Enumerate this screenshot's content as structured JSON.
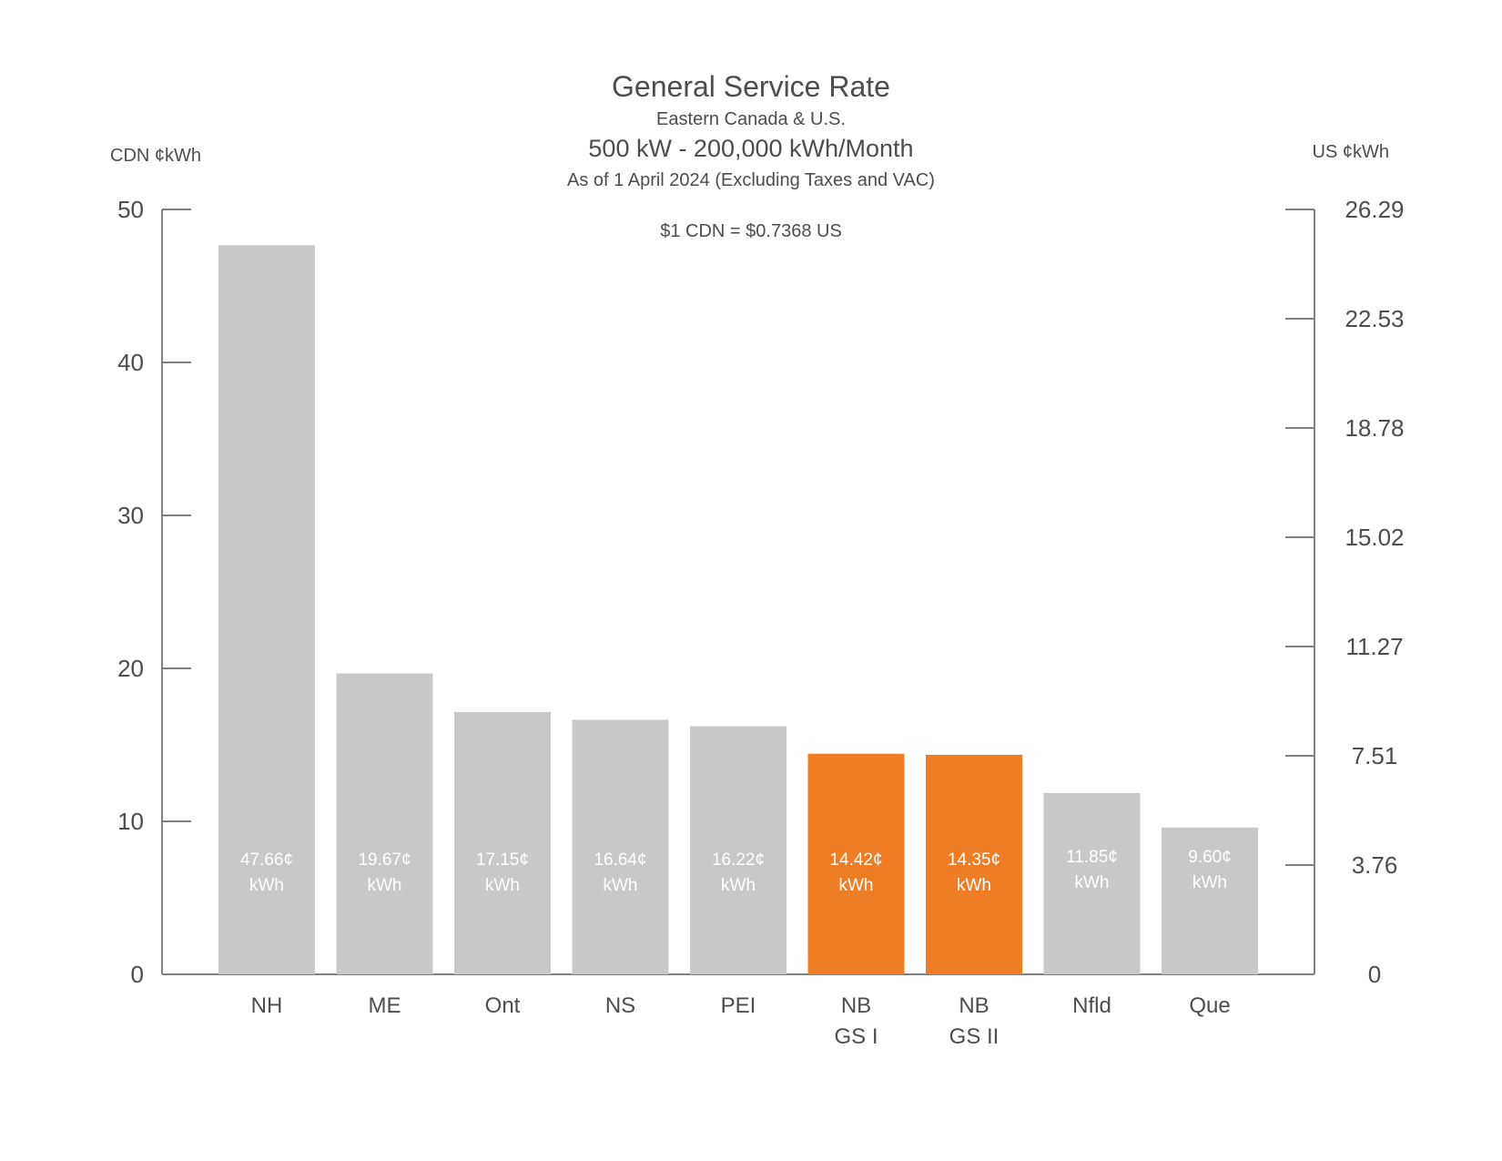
{
  "title": "General Service Rate",
  "subtitle": "Eastern Canada & U.S.",
  "subtitle2": "500 kW - 200,000 kWh/Month",
  "as_of": "As of 1 April 2024 (Excluding Taxes and VAC)",
  "exchange_note": "$1 CDN = $0.7368 US",
  "colors": {
    "default_bar": "#c7c8ca",
    "highlight_bar": "#ef7d26",
    "axis": "#808080",
    "text": "#4d4d4d"
  },
  "chart_data": {
    "type": "bar",
    "ylabel_left": "CDN ¢kWh",
    "ylabel_right": "US ¢kWh",
    "ylim": [
      0,
      50
    ],
    "left_ticks": [
      "0",
      "10",
      "20",
      "30",
      "40",
      "50"
    ],
    "right_ticks": [
      "0",
      "3.76",
      "7.51",
      "11.27",
      "15.02",
      "18.78",
      "22.53",
      "26.29"
    ],
    "categories": [
      [
        "NH"
      ],
      [
        "ME"
      ],
      [
        "Ont"
      ],
      [
        "NS"
      ],
      [
        "PEI"
      ],
      [
        "NB",
        "GS I"
      ],
      [
        "NB",
        "GS II"
      ],
      [
        "Nfld"
      ],
      [
        "Que"
      ]
    ],
    "values": [
      47.66,
      19.67,
      17.15,
      16.64,
      16.22,
      14.42,
      14.35,
      11.85,
      9.6
    ],
    "value_labels": [
      [
        "47.66¢",
        "kWh"
      ],
      [
        "19.67¢",
        "kWh"
      ],
      [
        "17.15¢",
        "kWh"
      ],
      [
        "16.64¢",
        "kWh"
      ],
      [
        "16.22¢",
        "kWh"
      ],
      [
        "14.42¢",
        "kWh"
      ],
      [
        "14.35¢",
        "kWh"
      ],
      [
        "11.85¢",
        "kWh"
      ],
      [
        "9.60¢",
        "kWh"
      ]
    ],
    "highlighted": [
      false,
      false,
      false,
      false,
      false,
      true,
      true,
      false,
      false
    ],
    "grid": false,
    "legend": "none"
  }
}
